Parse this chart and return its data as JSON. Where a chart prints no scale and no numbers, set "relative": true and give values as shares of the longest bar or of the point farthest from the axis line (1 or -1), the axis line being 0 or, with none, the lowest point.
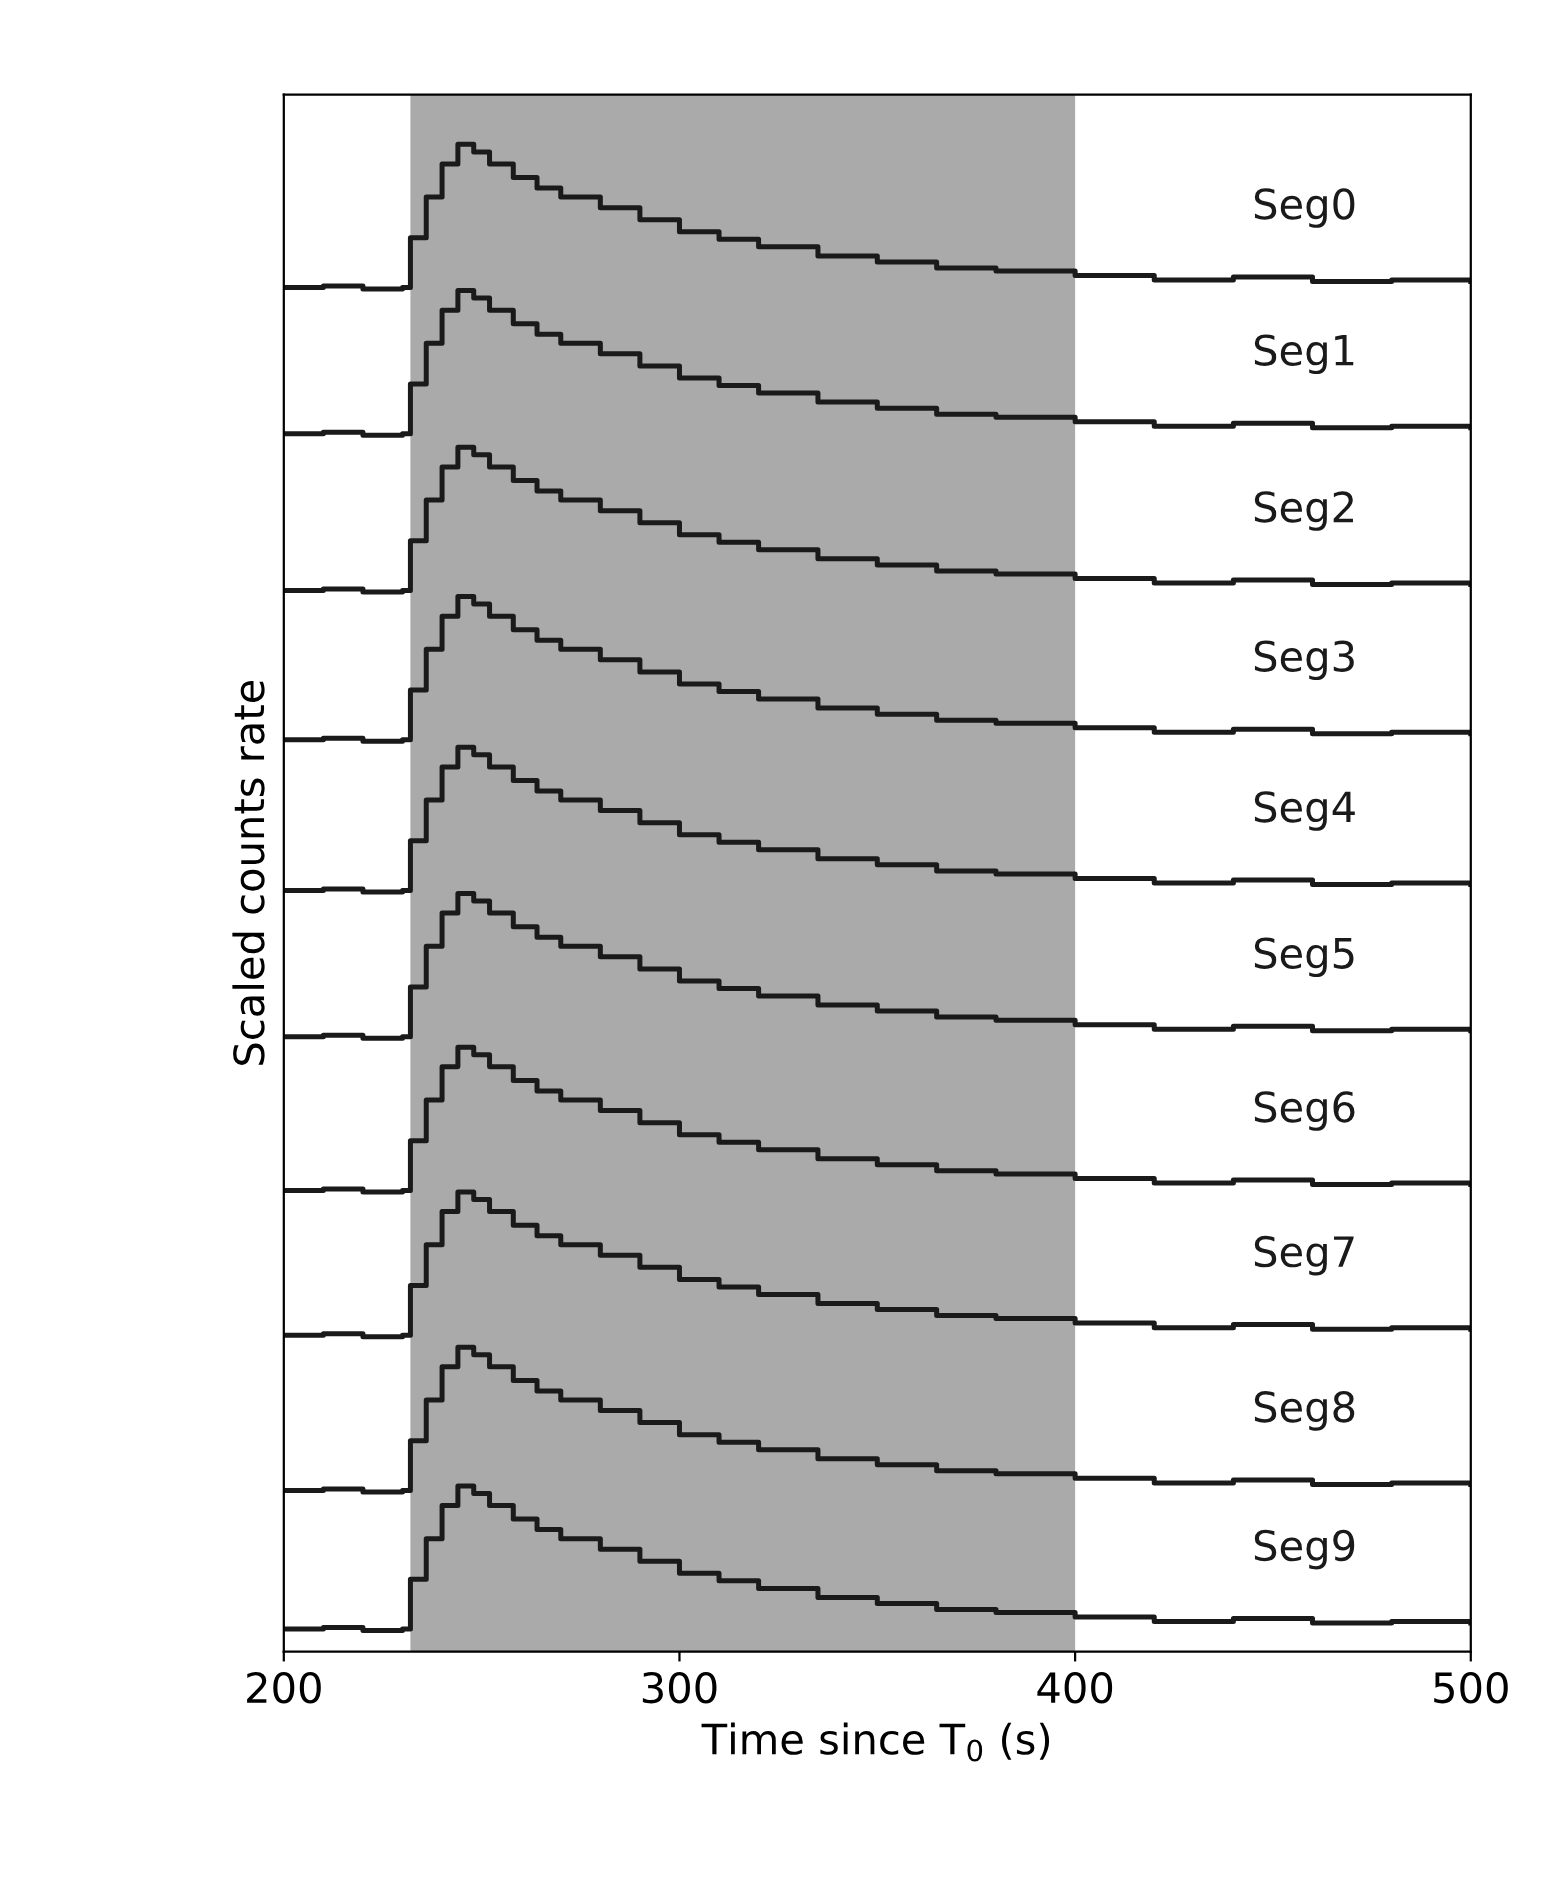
{
  "chart_data": {
    "type": "step",
    "relative": true,
    "xlabel": "Time since T$_{0}$ (s)",
    "ylabel": "Scaled counts rate",
    "xlim": [
      200,
      500
    ],
    "xticks": [
      200,
      300,
      400,
      500
    ],
    "grid": false,
    "legend": false,
    "bands": [
      {
        "axis": "x",
        "from": 232,
        "to": 400,
        "color": "#aaaaaa"
      }
    ],
    "x": [
      200,
      210,
      220,
      230,
      232,
      236,
      240,
      244,
      248,
      252,
      258,
      264,
      270,
      280,
      290,
      300,
      310,
      320,
      335,
      350,
      365,
      380,
      400,
      420,
      440,
      460,
      480,
      500
    ],
    "series": [
      {
        "name": "Seg0",
        "color": "#1a1a1a",
        "values": [
          0.905,
          0.906,
          0.904,
          0.905,
          0.938,
          0.965,
          0.987,
          1.0,
          0.995,
          0.987,
          0.978,
          0.971,
          0.965,
          0.958,
          0.95,
          0.942,
          0.937,
          0.932,
          0.926,
          0.922,
          0.918,
          0.916,
          0.913,
          0.91,
          0.912,
          0.909,
          0.91,
          0.909
        ]
      },
      {
        "name": "Seg1",
        "color": "#1a1a1a",
        "values": [
          0.808,
          0.809,
          0.807,
          0.808,
          0.841,
          0.868,
          0.89,
          0.903,
          0.898,
          0.89,
          0.881,
          0.874,
          0.868,
          0.861,
          0.853,
          0.845,
          0.84,
          0.835,
          0.829,
          0.825,
          0.821,
          0.819,
          0.816,
          0.813,
          0.815,
          0.812,
          0.813,
          0.812
        ]
      },
      {
        "name": "Seg2",
        "color": "#1a1a1a",
        "values": [
          0.704,
          0.705,
          0.703,
          0.704,
          0.737,
          0.764,
          0.786,
          0.799,
          0.794,
          0.786,
          0.777,
          0.77,
          0.764,
          0.757,
          0.749,
          0.741,
          0.736,
          0.731,
          0.725,
          0.721,
          0.717,
          0.715,
          0.712,
          0.709,
          0.711,
          0.708,
          0.709,
          0.708
        ]
      },
      {
        "name": "Seg3",
        "color": "#1a1a1a",
        "values": [
          0.605,
          0.606,
          0.604,
          0.605,
          0.638,
          0.665,
          0.687,
          0.7,
          0.695,
          0.687,
          0.678,
          0.671,
          0.665,
          0.658,
          0.65,
          0.642,
          0.637,
          0.632,
          0.626,
          0.622,
          0.618,
          0.616,
          0.613,
          0.61,
          0.612,
          0.609,
          0.61,
          0.609
        ]
      },
      {
        "name": "Seg4",
        "color": "#1a1a1a",
        "values": [
          0.505,
          0.506,
          0.504,
          0.505,
          0.538,
          0.565,
          0.587,
          0.6,
          0.595,
          0.587,
          0.578,
          0.571,
          0.565,
          0.558,
          0.55,
          0.542,
          0.537,
          0.532,
          0.526,
          0.522,
          0.518,
          0.516,
          0.513,
          0.51,
          0.512,
          0.509,
          0.51,
          0.509
        ]
      },
      {
        "name": "Seg5",
        "color": "#1a1a1a",
        "values": [
          0.408,
          0.409,
          0.407,
          0.408,
          0.441,
          0.468,
          0.49,
          0.503,
          0.498,
          0.49,
          0.481,
          0.474,
          0.468,
          0.461,
          0.453,
          0.445,
          0.44,
          0.435,
          0.429,
          0.425,
          0.421,
          0.419,
          0.416,
          0.413,
          0.415,
          0.412,
          0.413,
          0.412
        ]
      },
      {
        "name": "Seg6",
        "color": "#1a1a1a",
        "values": [
          0.306,
          0.307,
          0.305,
          0.306,
          0.339,
          0.366,
          0.388,
          0.401,
          0.396,
          0.388,
          0.379,
          0.372,
          0.366,
          0.359,
          0.351,
          0.343,
          0.338,
          0.333,
          0.327,
          0.323,
          0.319,
          0.317,
          0.314,
          0.311,
          0.313,
          0.31,
          0.311,
          0.31
        ]
      },
      {
        "name": "Seg7",
        "color": "#1a1a1a",
        "values": [
          0.21,
          0.211,
          0.209,
          0.21,
          0.243,
          0.27,
          0.292,
          0.305,
          0.3,
          0.292,
          0.283,
          0.276,
          0.27,
          0.263,
          0.255,
          0.247,
          0.242,
          0.237,
          0.231,
          0.227,
          0.223,
          0.221,
          0.218,
          0.215,
          0.217,
          0.214,
          0.215,
          0.214
        ]
      },
      {
        "name": "Seg8",
        "color": "#1a1a1a",
        "values": [
          0.107,
          0.108,
          0.106,
          0.107,
          0.14,
          0.167,
          0.189,
          0.202,
          0.197,
          0.189,
          0.18,
          0.173,
          0.167,
          0.16,
          0.152,
          0.144,
          0.139,
          0.134,
          0.128,
          0.124,
          0.12,
          0.118,
          0.115,
          0.112,
          0.114,
          0.111,
          0.112,
          0.111
        ]
      },
      {
        "name": "Seg9",
        "color": "#1a1a1a",
        "values": [
          0.015,
          0.016,
          0.014,
          0.015,
          0.048,
          0.075,
          0.097,
          0.11,
          0.105,
          0.097,
          0.088,
          0.081,
          0.075,
          0.068,
          0.06,
          0.052,
          0.047,
          0.042,
          0.036,
          0.032,
          0.028,
          0.026,
          0.023,
          0.02,
          0.022,
          0.019,
          0.02,
          0.019
        ]
      }
    ]
  }
}
